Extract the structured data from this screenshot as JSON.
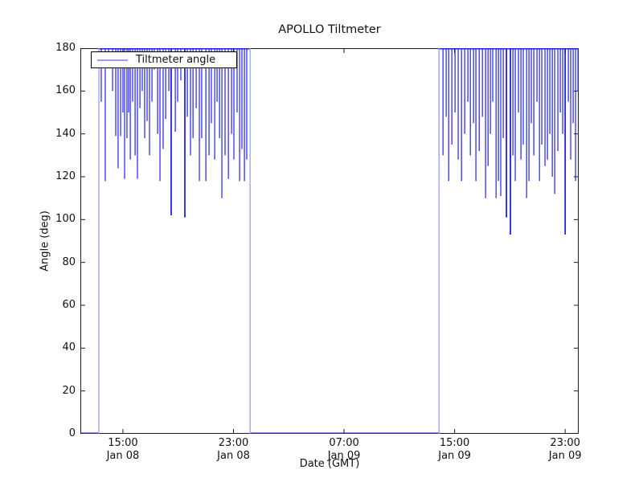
{
  "figure": {
    "background": "#ffffff",
    "frame_color": "#1c1c1c"
  },
  "chart_data": {
    "type": "line",
    "title": "APOLLO Tiltmeter",
    "xlabel": "Date (GMT)",
    "ylabel": "Angle (deg)",
    "legend": {
      "label": "Tiltmeter angle",
      "position": "upper left"
    },
    "line_color": "#2020ee",
    "light_line_color": "#9a9aee",
    "x_unit": "hours since Jan 08 00:00 GMT",
    "xlim_hours": [
      11.92,
      47.98
    ],
    "ylim": [
      0,
      180
    ],
    "grid": false,
    "yticks": [
      0,
      20,
      40,
      60,
      80,
      100,
      120,
      140,
      160,
      180
    ],
    "xticks": [
      {
        "hour": 15,
        "time": "15:00",
        "date": "Jan 08"
      },
      {
        "hour": 23,
        "time": "23:00",
        "date": "Jan 08"
      },
      {
        "hour": 31,
        "time": "07:00",
        "date": "Jan 09"
      },
      {
        "hour": 39,
        "time": "15:00",
        "date": "Jan 09"
      },
      {
        "hour": 47,
        "time": "23:00",
        "date": "Jan 09"
      }
    ],
    "baseline_zero_segments_hours": [
      [
        11.92,
        13.26
      ],
      [
        24.2,
        37.87
      ]
    ],
    "top_segments_hours": [
      [
        13.26,
        24.2
      ],
      [
        37.87,
        47.98
      ]
    ],
    "boundary_drops_hours": [
      13.26,
      24.2,
      37.87
    ],
    "spikes": [
      [
        13.43,
        155
      ],
      [
        13.72,
        118
      ],
      [
        13.96,
        172
      ],
      [
        14.25,
        160
      ],
      [
        14.48,
        139
      ],
      [
        14.65,
        124
      ],
      [
        14.83,
        139
      ],
      [
        15.0,
        150
      ],
      [
        15.12,
        119
      ],
      [
        15.29,
        138
      ],
      [
        15.41,
        150
      ],
      [
        15.53,
        128
      ],
      [
        15.7,
        155
      ],
      [
        15.88,
        130
      ],
      [
        16.05,
        119
      ],
      [
        16.23,
        152
      ],
      [
        16.4,
        160
      ],
      [
        16.57,
        138
      ],
      [
        16.75,
        146
      ],
      [
        16.92,
        130
      ],
      [
        17.1,
        155
      ],
      [
        17.27,
        170
      ],
      [
        17.51,
        140
      ],
      [
        17.68,
        118
      ],
      [
        17.91,
        133
      ],
      [
        18.09,
        147
      ],
      [
        18.32,
        160
      ],
      [
        18.49,
        102
      ],
      [
        18.79,
        141
      ],
      [
        18.96,
        155
      ],
      [
        19.19,
        165
      ],
      [
        19.48,
        101
      ],
      [
        19.66,
        148
      ],
      [
        19.89,
        130
      ],
      [
        20.07,
        138
      ],
      [
        20.3,
        152
      ],
      [
        20.53,
        118
      ],
      [
        20.7,
        138
      ],
      [
        21.0,
        118
      ],
      [
        21.23,
        130
      ],
      [
        21.4,
        145
      ],
      [
        21.64,
        128
      ],
      [
        21.81,
        155
      ],
      [
        21.99,
        138
      ],
      [
        22.16,
        110
      ],
      [
        22.39,
        130
      ],
      [
        22.63,
        119
      ],
      [
        22.86,
        140
      ],
      [
        23.03,
        128
      ],
      [
        23.26,
        150
      ],
      [
        23.44,
        118
      ],
      [
        23.61,
        133
      ],
      [
        23.79,
        118
      ],
      [
        23.96,
        128
      ],
      [
        38.16,
        130
      ],
      [
        38.39,
        148
      ],
      [
        38.57,
        118
      ],
      [
        38.8,
        135
      ],
      [
        39.03,
        150
      ],
      [
        39.26,
        128
      ],
      [
        39.5,
        118
      ],
      [
        39.73,
        140
      ],
      [
        39.96,
        155
      ],
      [
        40.14,
        130
      ],
      [
        40.37,
        145
      ],
      [
        40.54,
        118
      ],
      [
        40.78,
        132
      ],
      [
        41.01,
        148
      ],
      [
        41.24,
        110
      ],
      [
        41.42,
        125
      ],
      [
        41.59,
        140
      ],
      [
        41.76,
        155
      ],
      [
        42.0,
        110
      ],
      [
        42.17,
        118
      ],
      [
        42.34,
        111
      ],
      [
        42.52,
        138
      ],
      [
        42.75,
        101
      ],
      [
        43.04,
        93
      ],
      [
        43.22,
        130
      ],
      [
        43.39,
        118
      ],
      [
        43.62,
        150
      ],
      [
        43.8,
        128
      ],
      [
        43.97,
        135
      ],
      [
        44.21,
        110
      ],
      [
        44.38,
        118
      ],
      [
        44.55,
        145
      ],
      [
        44.73,
        130
      ],
      [
        44.96,
        155
      ],
      [
        45.14,
        118
      ],
      [
        45.31,
        135
      ],
      [
        45.54,
        125
      ],
      [
        45.72,
        128
      ],
      [
        45.89,
        140
      ],
      [
        46.07,
        120
      ],
      [
        46.24,
        112
      ],
      [
        46.47,
        132
      ],
      [
        46.65,
        150
      ],
      [
        46.82,
        140
      ],
      [
        47.0,
        93
      ],
      [
        47.23,
        155
      ],
      [
        47.4,
        128
      ],
      [
        47.58,
        145
      ],
      [
        47.75,
        118
      ],
      [
        47.93,
        160
      ]
    ]
  }
}
